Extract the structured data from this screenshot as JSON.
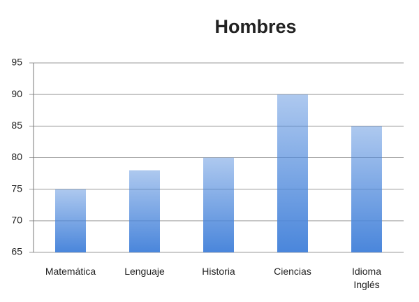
{
  "chart_data": {
    "type": "bar",
    "title": "Hombres",
    "categories": [
      "Matemática",
      "Lenguaje",
      "Historia",
      "Ciencias",
      "Idioma\nInglés"
    ],
    "values": [
      75,
      78,
      80,
      90,
      85
    ],
    "color": "#4a86db",
    "ylim": [
      65,
      95
    ],
    "yticks": [
      65,
      70,
      75,
      80,
      85,
      90,
      95
    ],
    "grid": true
  }
}
